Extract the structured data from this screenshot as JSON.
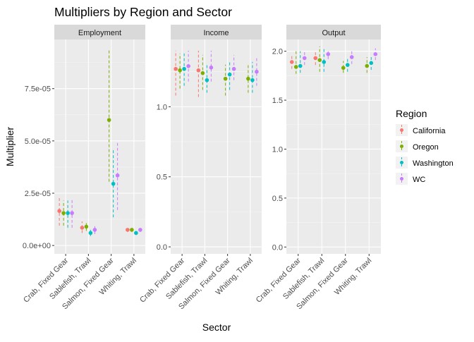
{
  "chart_data": {
    "type": "scatter",
    "title": "Multipliers by Region and Sector",
    "xlabel": "Sector",
    "ylabel": "Multiplier",
    "categories": [
      "Crab, Fixed Gear",
      "Sablefish, Trawl",
      "Salmon, Fixed Gear",
      "Whiting, Trawl"
    ],
    "legend": {
      "title": "Region",
      "placement": "right",
      "entries": [
        {
          "name": "California",
          "color": "#F8766D"
        },
        {
          "name": "Oregon",
          "color": "#7CAE00"
        },
        {
          "name": "Washington",
          "color": "#00BFC4"
        },
        {
          "name": "WC",
          "color": "#C77CFF"
        }
      ]
    },
    "errorbars": "dashed vertical ranges (lo–hi) around each point",
    "grid": true,
    "panels": [
      {
        "name": "Employment",
        "ylim": [
          -4e-06,
          9.85e-05
        ],
        "ticks": [
          0,
          2.5e-05,
          5e-05,
          7.5e-05
        ],
        "tick_labels": [
          "0.0e+00",
          "2.5e-05",
          "5.0e-05",
          "7.5e-05"
        ],
        "series": [
          {
            "name": "California",
            "values": [
              1.65e-05,
              8.5e-06,
              null,
              7.5e-06
            ],
            "lo": [
              9.5e-06,
              6e-06,
              null,
              6.5e-06
            ],
            "hi": [
              2.35e-05,
              1.15e-05,
              null,
              8.5e-06
            ]
          },
          {
            "name": "Oregon",
            "values": [
              1.55e-05,
              9e-06,
              6e-05,
              7.5e-06
            ],
            "lo": [
              9.5e-06,
              7e-06,
              3.05e-05,
              6.5e-06
            ],
            "hi": [
              2.15e-05,
              1.1e-05,
              9.4e-05,
              8.5e-06
            ]
          },
          {
            "name": "Washington",
            "values": [
              1.55e-05,
              6e-06,
              2.95e-05,
              6e-06
            ],
            "lo": [
              8.5e-06,
              4.5e-06,
              1.35e-05,
              5e-06
            ],
            "hi": [
              2.15e-05,
              7.5e-06,
              4.65e-05,
              7e-06
            ]
          },
          {
            "name": "WC",
            "values": [
              1.55e-05,
              7.5e-06,
              3.35e-05,
              7.5e-06
            ],
            "lo": [
              8.5e-06,
              5.5e-06,
              1.7e-05,
              6.5e-06
            ],
            "hi": [
              2.2e-05,
              1e-05,
              5e-05,
              8.5e-06
            ]
          }
        ]
      },
      {
        "name": "Income",
        "ylim": [
          -0.05,
          1.48
        ],
        "ticks": [
          0,
          0.5,
          1.0
        ],
        "tick_labels": [
          "0.0",
          "0.5",
          "1.0"
        ],
        "series": [
          {
            "name": "California",
            "values": [
              1.27,
              1.26,
              null,
              null
            ],
            "lo": [
              1.08,
              1.07,
              null,
              null
            ],
            "hi": [
              1.4,
              1.4,
              null,
              null
            ]
          },
          {
            "name": "Oregon",
            "values": [
              1.26,
              1.24,
              1.2,
              1.2
            ],
            "lo": [
              1.13,
              1.12,
              1.08,
              1.1
            ],
            "hi": [
              1.38,
              1.37,
              1.3,
              1.31
            ]
          },
          {
            "name": "Washington",
            "values": [
              1.27,
              1.19,
              1.23,
              1.19
            ],
            "lo": [
              1.15,
              1.1,
              1.12,
              1.1
            ],
            "hi": [
              1.38,
              1.31,
              1.33,
              1.32
            ]
          },
          {
            "name": "WC",
            "values": [
              1.29,
              1.28,
              1.27,
              1.25
            ],
            "lo": [
              1.18,
              1.18,
              1.19,
              1.15
            ],
            "hi": [
              1.4,
              1.4,
              1.37,
              1.36
            ]
          }
        ]
      },
      {
        "name": "Output",
        "ylim": [
          -0.07,
          2.12
        ],
        "ticks": [
          0,
          0.5,
          1.0,
          1.5,
          2.0
        ],
        "tick_labels": [
          "0.0",
          "0.5",
          "1.0",
          "1.5",
          "2.0"
        ],
        "series": [
          {
            "name": "California",
            "values": [
              1.89,
              1.93,
              null,
              null
            ],
            "lo": [
              1.82,
              1.86,
              null,
              null
            ],
            "hi": [
              1.97,
              2.0,
              null,
              null
            ]
          },
          {
            "name": "Oregon",
            "values": [
              1.84,
              1.91,
              1.83,
              1.85
            ],
            "lo": [
              1.77,
              1.79,
              1.78,
              1.78
            ],
            "hi": [
              2.01,
              2.05,
              1.9,
              1.94
            ]
          },
          {
            "name": "Washington",
            "values": [
              1.85,
              1.89,
              1.86,
              1.88
            ],
            "lo": [
              1.78,
              1.79,
              1.79,
              1.81
            ],
            "hi": [
              2.0,
              2.03,
              1.93,
              1.96
            ]
          },
          {
            "name": "WC",
            "values": [
              1.93,
              1.97,
              1.94,
              1.97
            ],
            "lo": [
              1.86,
              1.92,
              1.87,
              1.91
            ],
            "hi": [
              1.99,
              2.02,
              2.01,
              2.03
            ]
          }
        ]
      }
    ]
  }
}
